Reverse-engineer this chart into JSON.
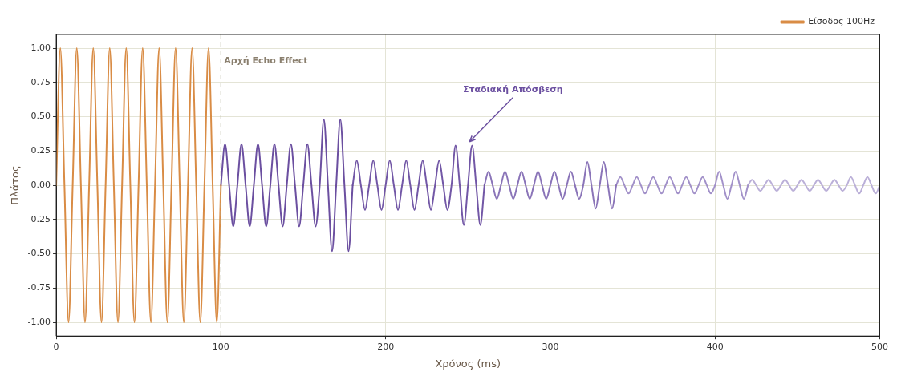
{
  "chart_data": {
    "type": "line",
    "xlabel": "Χρόνος (ms)",
    "ylabel": "Πλάτος",
    "xlim": [
      0,
      500
    ],
    "xticks": [
      0,
      100,
      200,
      300,
      400,
      500
    ],
    "ylim": [
      -1.1,
      1.1
    ],
    "yticks": [
      {
        "value": -1,
        "label": "-1.00"
      },
      {
        "value": -0.75,
        "label": "-0.75"
      },
      {
        "value": -0.5,
        "label": "-0.50"
      },
      {
        "value": -0.25,
        "label": "-0.25"
      },
      {
        "value": 0,
        "label": "0.00"
      },
      {
        "value": 0.25,
        "label": "0.25"
      },
      {
        "value": 0.5,
        "label": "0.50"
      },
      {
        "value": 0.75,
        "label": "0.75"
      },
      {
        "value": 1,
        "label": "1.00"
      }
    ],
    "grid": true,
    "legend": "top right",
    "series": [
      {
        "name": "Είσοδος 100Hz",
        "color": "#d98c45",
        "x": [
          0,
          2.5,
          5,
          7.5,
          10,
          12.5,
          15,
          17.5,
          20,
          22.5,
          25,
          27.5,
          30,
          32.5,
          35,
          37.5,
          40,
          42.5,
          45,
          47.5,
          50,
          52.5,
          55,
          57.5,
          60,
          62.5,
          65,
          67.5,
          70,
          72.5,
          75,
          77.5,
          80,
          82.5,
          85,
          87.5,
          90,
          92.5,
          95,
          97.5,
          100
        ],
        "values": [
          0,
          1,
          0,
          -1,
          0,
          1,
          0,
          -1,
          0,
          1,
          0,
          -1,
          0,
          1,
          0,
          -1,
          0,
          1,
          0,
          -1,
          0,
          1,
          0,
          -1,
          0,
          1,
          0,
          -1,
          0,
          1,
          0,
          -1,
          0,
          1,
          0,
          -1,
          0,
          1,
          0,
          -1,
          0
        ]
      },
      {
        "color": "#6b4fa0",
        "x": [
          100,
          102.5,
          105,
          107.5,
          110,
          112.5,
          115,
          117.5,
          120,
          122.5,
          125,
          127.5,
          130,
          132.5,
          135,
          137.5,
          140,
          142.5,
          145,
          147.5,
          150,
          152.5,
          155,
          157.5,
          160,
          162.5,
          165,
          167.5,
          170,
          172.5,
          175,
          177.5,
          180
        ],
        "values": [
          0,
          0.3,
          0,
          -0.3,
          0,
          0.3,
          0,
          -0.3,
          0,
          0.3,
          0,
          -0.3,
          0,
          0.3,
          0,
          -0.3,
          0,
          0.3,
          0,
          -0.3,
          0,
          0.3,
          0,
          -0.3,
          0,
          0.48,
          0,
          -0.48,
          0,
          0.48,
          0,
          -0.48,
          0
        ]
      },
      {
        "color": "#7257a6",
        "x": [
          180,
          182.5,
          185,
          187.5,
          190,
          192.5,
          195,
          197.5,
          200,
          202.5,
          205,
          207.5,
          210,
          212.5,
          215,
          217.5,
          220,
          222.5,
          225,
          227.5,
          230,
          232.5,
          235,
          237.5,
          240,
          242.5,
          245,
          247.5,
          250,
          252.5,
          255,
          257.5,
          260
        ],
        "values": [
          0,
          0.18,
          0,
          -0.18,
          0,
          0.18,
          0,
          -0.18,
          0,
          0.18,
          0,
          -0.18,
          0,
          0.18,
          0,
          -0.18,
          0,
          0.18,
          0,
          -0.18,
          0,
          0.18,
          0,
          -0.18,
          0,
          0.29,
          0,
          -0.29,
          0,
          0.29,
          0,
          -0.29,
          0
        ]
      },
      {
        "color": "#8a74b8",
        "x": [
          260,
          262.5,
          265,
          267.5,
          270,
          272.5,
          275,
          277.5,
          280,
          282.5,
          285,
          287.5,
          290,
          292.5,
          295,
          297.5,
          300,
          302.5,
          305,
          307.5,
          310,
          312.5,
          315,
          317.5,
          320,
          322.5,
          325,
          327.5,
          330,
          332.5,
          335,
          337.5,
          340
        ],
        "values": [
          0,
          0.1,
          0,
          -0.1,
          0,
          0.1,
          0,
          -0.1,
          0,
          0.1,
          0,
          -0.1,
          0,
          0.1,
          0,
          -0.1,
          0,
          0.1,
          0,
          -0.1,
          0,
          0.1,
          0,
          -0.1,
          0,
          0.17,
          0,
          -0.17,
          0,
          0.17,
          0,
          -0.17,
          0
        ]
      },
      {
        "color": "#a291c9",
        "x": [
          340,
          342.5,
          345,
          347.5,
          350,
          352.5,
          355,
          357.5,
          360,
          362.5,
          365,
          367.5,
          370,
          372.5,
          375,
          377.5,
          380,
          382.5,
          385,
          387.5,
          390,
          392.5,
          395,
          397.5,
          400,
          402.5,
          405,
          407.5,
          410,
          412.5,
          415,
          417.5,
          420
        ],
        "values": [
          0,
          0.06,
          0,
          -0.06,
          0,
          0.06,
          0,
          -0.06,
          0,
          0.06,
          0,
          -0.06,
          0,
          0.06,
          0,
          -0.06,
          0,
          0.06,
          0,
          -0.06,
          0,
          0.06,
          0,
          -0.06,
          0,
          0.1,
          0,
          -0.1,
          0,
          0.1,
          0,
          -0.1,
          0
        ]
      },
      {
        "color": "#bbb0d8",
        "x": [
          420,
          422.5,
          425,
          427.5,
          430,
          432.5,
          435,
          437.5,
          440,
          442.5,
          445,
          447.5,
          450,
          452.5,
          455,
          457.5,
          460,
          462.5,
          465,
          467.5,
          470,
          472.5,
          475,
          477.5,
          480,
          482.5,
          485,
          487.5,
          490,
          492.5,
          495,
          497.5,
          500
        ],
        "values": [
          0,
          0.04,
          0,
          -0.04,
          0,
          0.04,
          0,
          -0.04,
          0,
          0.04,
          0,
          -0.04,
          0,
          0.04,
          0,
          -0.04,
          0,
          0.04,
          0,
          -0.04,
          0,
          0.04,
          0,
          -0.04,
          0,
          0.06,
          0,
          -0.06,
          0,
          0.06,
          0,
          -0.06,
          0
        ]
      }
    ],
    "ref_lines": [
      {
        "axis": "x",
        "value": 100,
        "label": "Αρχή Echo Effect",
        "color": "#b5b39c",
        "line_style": "dashed"
      }
    ],
    "annotations": [
      {
        "text": "Σταδιακή Απόσβεση",
        "x": 250,
        "y": 0.3
      }
    ]
  }
}
